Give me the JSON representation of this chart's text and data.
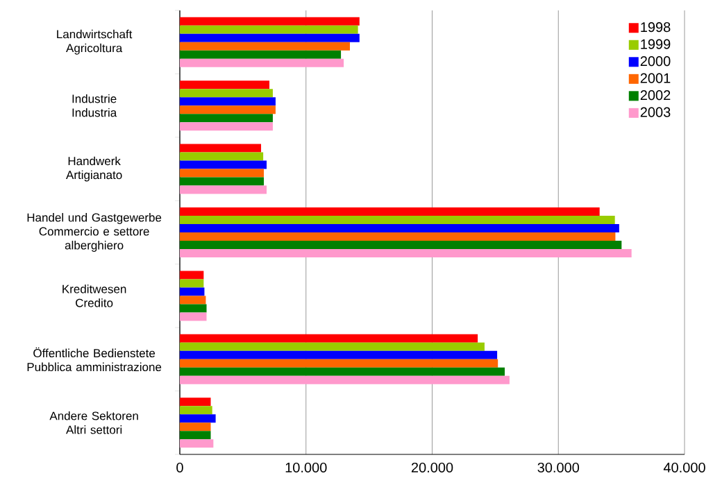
{
  "chart_data": {
    "type": "bar",
    "orientation": "horizontal",
    "categories": [
      "Landwirtschaft\nAgricoltura",
      "Industrie\nIndustria",
      "Handwerk\nArtigianato",
      "Handel und Gastgewerbe\nCommercio e settore\nalberghiero",
      "Kreditwesen\nCredito",
      "Öffentliche Bedienstete\nPubblica amministrazione",
      "Andere Sektoren\nAltri settori"
    ],
    "series": [
      {
        "name": "1998",
        "color": "#ff0000",
        "values": [
          14240,
          7100,
          6440,
          33270,
          1890,
          23610,
          2450
        ]
      },
      {
        "name": "1999",
        "color": "#99cc00",
        "values": [
          14120,
          7370,
          6610,
          34480,
          1890,
          24150,
          2570
        ]
      },
      {
        "name": "2000",
        "color": "#0000ff",
        "values": [
          14240,
          7590,
          6880,
          34820,
          1950,
          25150,
          2840
        ]
      },
      {
        "name": "2001",
        "color": "#ff6600",
        "values": [
          13480,
          7590,
          6660,
          34520,
          2060,
          25210,
          2450
        ]
      },
      {
        "name": "2002",
        "color": "#008000",
        "values": [
          12770,
          7370,
          6660,
          35010,
          2120,
          25750,
          2450
        ]
      },
      {
        "name": "2003",
        "color": "#ff99cc",
        "values": [
          12990,
          7370,
          6880,
          35800,
          2120,
          26130,
          2660
        ]
      }
    ],
    "xlim": [
      0,
      40000
    ],
    "xticks": [
      0,
      {
        "value": 10000,
        "label": "10.000"
      },
      {
        "value": 20000,
        "label": "20.000"
      },
      {
        "value": 30000,
        "label": "30.000"
      },
      {
        "value": 40000,
        "label": "40.000"
      }
    ],
    "grid": "x",
    "legend": "top right"
  }
}
